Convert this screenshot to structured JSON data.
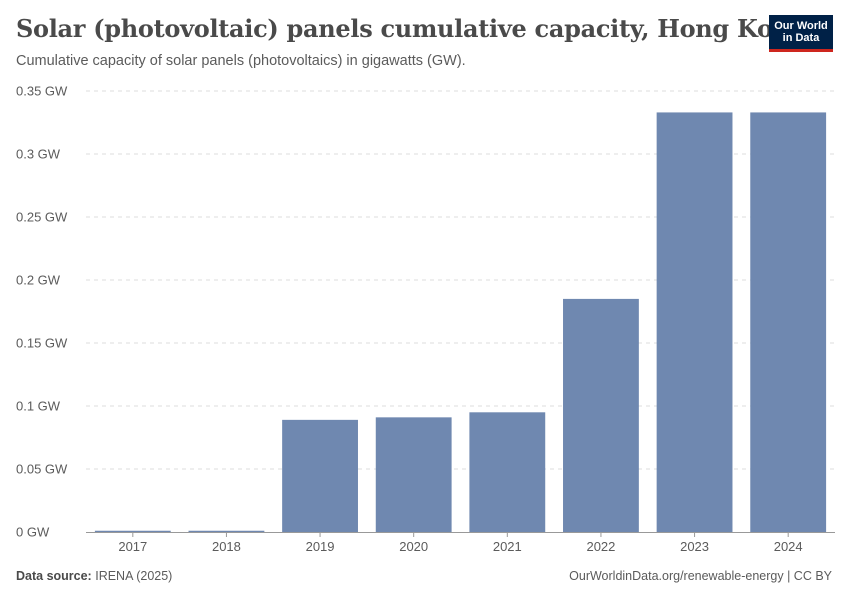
{
  "header": {
    "title": "Solar (photovoltaic) panels cumulative capacity, Hong Kong",
    "subtitle": "Cumulative capacity of solar panels (photovoltaics) in gigawatts (GW)."
  },
  "logo": {
    "line1": "Our World",
    "line2": "in Data"
  },
  "footer": {
    "source_label": "Data source:",
    "source_value": "IRENA (2025)",
    "credit": "OurWorldinData.org/renewable-energy | CC BY"
  },
  "colors": {
    "bar": "#6f88b0",
    "grid": "#dddddd",
    "axis": "#999999",
    "text": "#5b5b5b",
    "brand": "#002147",
    "brand_accent": "#ce261e"
  },
  "chart_data": {
    "type": "bar",
    "title": "Solar (photovoltaic) panels cumulative capacity, Hong Kong",
    "xlabel": "",
    "ylabel": "",
    "unit": "GW",
    "categories": [
      "2017",
      "2018",
      "2019",
      "2020",
      "2021",
      "2022",
      "2023",
      "2024"
    ],
    "values": [
      0.001,
      0.001,
      0.089,
      0.091,
      0.095,
      0.185,
      0.333,
      0.333
    ],
    "ylim": [
      0,
      0.35
    ],
    "yticks": [
      0,
      0.05,
      0.1,
      0.15,
      0.2,
      0.25,
      0.3,
      0.35
    ],
    "ytick_labels": [
      "0 GW",
      "0.05 GW",
      "0.1 GW",
      "0.15 GW",
      "0.2 GW",
      "0.25 GW",
      "0.3 GW",
      "0.35 GW"
    ],
    "grid": true,
    "legend": "none"
  }
}
